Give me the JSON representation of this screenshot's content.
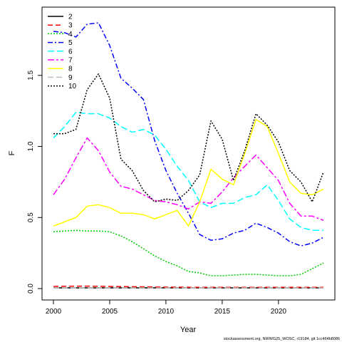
{
  "chart_data": {
    "type": "line",
    "title": "",
    "xlabel": "Year",
    "ylabel": "F",
    "xlim": [
      2000,
      2024
    ],
    "ylim": [
      0,
      1.9
    ],
    "x_ticks": [
      2000,
      2005,
      2010,
      2015,
      2020
    ],
    "y_ticks": [
      0.0,
      0.5,
      1.0,
      1.5
    ],
    "y_tick_labels": [
      "0.0",
      "0.5",
      "1.0",
      "1.5"
    ],
    "grid": false,
    "legend_position": "top-left",
    "x": [
      2000,
      2001,
      2002,
      2003,
      2004,
      2005,
      2006,
      2007,
      2008,
      2009,
      2010,
      2011,
      2012,
      2013,
      2014,
      2015,
      2016,
      2017,
      2018,
      2019,
      2020,
      2021,
      2022,
      2023,
      2024
    ],
    "series": [
      {
        "name": "2",
        "color": "#000000",
        "dash": "",
        "values": [
          0.005,
          0.005,
          0.005,
          0.005,
          0.005,
          0.005,
          0.005,
          0.005,
          0.005,
          0.005,
          0.005,
          0.005,
          0.005,
          0.005,
          0.005,
          0.005,
          0.005,
          0.005,
          0.005,
          0.005,
          0.005,
          0.005,
          0.005,
          0.005,
          0.005
        ]
      },
      {
        "name": "3",
        "color": "#ff0000",
        "dash": "7,4",
        "values": [
          0.015,
          0.016,
          0.017,
          0.017,
          0.016,
          0.015,
          0.014,
          0.013,
          0.012,
          0.011,
          0.01,
          0.01,
          0.009,
          0.009,
          0.009,
          0.009,
          0.009,
          0.009,
          0.009,
          0.009,
          0.009,
          0.009,
          0.009,
          0.009,
          0.009
        ]
      },
      {
        "name": "4",
        "color": "#00cd00",
        "dash": "2,2",
        "values": [
          0.4,
          0.405,
          0.41,
          0.405,
          0.405,
          0.4,
          0.37,
          0.33,
          0.28,
          0.23,
          0.19,
          0.16,
          0.12,
          0.11,
          0.09,
          0.09,
          0.095,
          0.1,
          0.1,
          0.095,
          0.09,
          0.09,
          0.1,
          0.14,
          0.18
        ]
      },
      {
        "name": "5",
        "color": "#0000ff",
        "dash": "7,3,2,3",
        "values": [
          1.81,
          1.8,
          1.77,
          1.86,
          1.87,
          1.71,
          1.48,
          1.41,
          1.33,
          1.04,
          0.83,
          0.67,
          0.53,
          0.38,
          0.34,
          0.35,
          0.39,
          0.41,
          0.46,
          0.43,
          0.39,
          0.33,
          0.3,
          0.32,
          0.36
        ]
      },
      {
        "name": "6",
        "color": "#00ffff",
        "dash": "9,4",
        "values": [
          1.06,
          1.14,
          1.24,
          1.23,
          1.23,
          1.2,
          1.14,
          1.1,
          1.12,
          1.08,
          0.98,
          0.86,
          0.76,
          0.61,
          0.57,
          0.6,
          0.6,
          0.64,
          0.66,
          0.73,
          0.62,
          0.49,
          0.43,
          0.41,
          0.41
        ]
      },
      {
        "name": "7",
        "color": "#ff00ff",
        "dash": "9,3,3,3",
        "values": [
          0.66,
          0.77,
          0.92,
          1.06,
          0.97,
          0.82,
          0.72,
          0.7,
          0.66,
          0.62,
          0.61,
          0.59,
          0.56,
          0.61,
          0.6,
          0.68,
          0.78,
          0.86,
          0.94,
          0.85,
          0.76,
          0.6,
          0.51,
          0.51,
          0.48
        ]
      },
      {
        "name": "8",
        "color": "#ffff00",
        "dash": "",
        "values": [
          0.44,
          0.47,
          0.5,
          0.58,
          0.59,
          0.57,
          0.53,
          0.53,
          0.52,
          0.49,
          0.52,
          0.55,
          0.44,
          0.61,
          0.84,
          0.77,
          0.73,
          0.95,
          1.19,
          1.14,
          0.95,
          0.75,
          0.67,
          0.66,
          0.7
        ]
      },
      {
        "name": "9",
        "color": "#bebebe",
        "dash": "8,4",
        "values": [
          0.005,
          0.005,
          0.005,
          0.005,
          0.005,
          0.005,
          0.005,
          0.005,
          0.005,
          0.005,
          0.005,
          0.005,
          0.005,
          0.005,
          0.005,
          0.005,
          0.005,
          0.005,
          0.005,
          0.005,
          0.005,
          0.005,
          0.005,
          0.005,
          0.005
        ]
      },
      {
        "name": "10",
        "color": "#000000",
        "dash": "2,2",
        "values": [
          1.09,
          1.09,
          1.12,
          1.4,
          1.51,
          1.34,
          0.91,
          0.83,
          0.69,
          0.61,
          0.63,
          0.62,
          0.69,
          0.8,
          1.18,
          1.05,
          0.76,
          0.97,
          1.23,
          1.15,
          1.03,
          0.83,
          0.75,
          0.61,
          0.82
        ]
      }
    ],
    "footer": "stockassessment.org, NWWG25_WOSC, r19184, git 1cc464b8086"
  }
}
